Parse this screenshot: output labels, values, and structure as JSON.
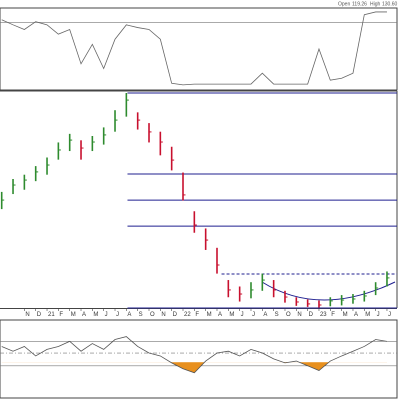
{
  "chart_data": [
    {
      "type": "line",
      "color": "#666666",
      "x": [
        -4,
        -3,
        -2,
        -1,
        0,
        1,
        2,
        3,
        4,
        5,
        6,
        7,
        8,
        9,
        10,
        11,
        12,
        13,
        14,
        15,
        16,
        17,
        18,
        19,
        20,
        21,
        22,
        23,
        24,
        25,
        26,
        27,
        28,
        29,
        30
      ],
      "values": [
        87.5,
        81,
        75,
        85,
        81,
        69,
        75,
        31,
        56,
        25,
        62.5,
        81,
        77.5,
        75,
        62.5,
        6,
        4,
        5,
        5,
        5,
        5,
        5,
        5,
        19,
        5,
        5,
        5,
        5,
        50,
        10,
        12.5,
        19,
        94,
        97.5,
        97.5
      ],
      "xlim": [
        -4.15,
        31.15
      ],
      "ylim": [
        0,
        100
      ],
      "levels": [
        84
      ]
    },
    {
      "type": "ohlc",
      "up_color": "#2e8b2e",
      "down_color": "#c8102e",
      "level_color": "#1f1f8f",
      "header": {
        "names": [
          "Open",
          "High"
        ],
        "values": [
          119.26,
          130.6
        ],
        "value_labels": [
          "119.26",
          "130.60"
        ]
      },
      "x": [
        -4,
        -3,
        -2,
        -1,
        0,
        1,
        2,
        3,
        4,
        5,
        6,
        7,
        8,
        9,
        10,
        11,
        12,
        13,
        14,
        15,
        16,
        17,
        18,
        19,
        20,
        21,
        22,
        23,
        24,
        25,
        26,
        27,
        28,
        29,
        30
      ],
      "high": [
        89,
        95,
        97,
        101,
        105,
        112,
        116,
        113,
        115,
        119,
        127,
        135,
        126,
        121,
        117,
        110,
        98,
        80,
        72,
        63,
        48,
        45,
        47,
        51,
        48,
        43,
        40,
        39,
        38.5,
        40,
        41,
        41.5,
        43,
        47,
        52
      ],
      "low": [
        81,
        88,
        90,
        94,
        97,
        104,
        108,
        104,
        108,
        111,
        117,
        124,
        118,
        112,
        106,
        99,
        85,
        70,
        62,
        51,
        40,
        38,
        39.5,
        43,
        40,
        37.5,
        36,
        35.5,
        35.2,
        35.8,
        36.2,
        37,
        38,
        41,
        45
      ],
      "close": [
        85.2,
        92.2,
        94.5,
        98.3,
        101.5,
        108.5,
        113.1,
        109.4,
        112.2,
        115.5,
        122.4,
        131.7,
        122.4,
        116.9,
        112.2,
        103.8,
        87.6,
        73.6,
        66.6,
        55,
        43.4,
        41.5,
        43.4,
        48,
        43.4,
        40.1,
        37.8,
        36.9,
        36.4,
        38.3,
        38.7,
        39.2,
        40.6,
        44.3,
        49
      ],
      "levels": [
        {
          "value": 135,
          "from": 7.1
        },
        {
          "value": 97.3,
          "from": 7.1
        },
        {
          "value": 85.2,
          "from": 7.1
        },
        {
          "value": 73.1,
          "from": 7.1
        },
        {
          "value": 50.8,
          "from": 15.4,
          "dashed": true
        },
        {
          "value": 35,
          "from": 7.1
        }
      ],
      "xlim": [
        -4.15,
        31.15
      ],
      "ylim": [
        35,
        135
      ],
      "xticks": [
        {
          "value": -2,
          "label": "N"
        },
        {
          "value": -1,
          "label": "D"
        },
        {
          "value": 0,
          "label": "21"
        },
        {
          "value": 1,
          "label": "F"
        },
        {
          "value": 2,
          "label": "M"
        },
        {
          "value": 3,
          "label": "A"
        },
        {
          "value": 4,
          "label": "M"
        },
        {
          "value": 5,
          "label": "J"
        },
        {
          "value": 6,
          "label": "J"
        },
        {
          "value": 7,
          "label": "A"
        },
        {
          "value": 8,
          "label": "S"
        },
        {
          "value": 9,
          "label": "O"
        },
        {
          "value": 10,
          "label": "N"
        },
        {
          "value": 11,
          "label": "D"
        },
        {
          "value": 12,
          "label": "22"
        },
        {
          "value": 13,
          "label": "F"
        },
        {
          "value": 14,
          "label": "M"
        },
        {
          "value": 15,
          "label": "A"
        },
        {
          "value": 16,
          "label": "M"
        },
        {
          "value": 17,
          "label": "J"
        },
        {
          "value": 18,
          "label": "J"
        },
        {
          "value": 19,
          "label": "A"
        },
        {
          "value": 20,
          "label": "S"
        },
        {
          "value": 21,
          "label": "O"
        },
        {
          "value": 22,
          "label": "N"
        },
        {
          "value": 23,
          "label": "D"
        },
        {
          "value": 24,
          "label": "23"
        },
        {
          "value": 25,
          "label": "F"
        },
        {
          "value": 26,
          "label": "M"
        },
        {
          "value": 27,
          "label": "A"
        },
        {
          "value": 28,
          "label": "M"
        },
        {
          "value": 29,
          "label": "J"
        },
        {
          "value": 30,
          "label": "J"
        }
      ]
    },
    {
      "type": "line",
      "color": "#555555",
      "fill_color": "#e8901e",
      "x": [
        -4,
        -3,
        -2,
        -1,
        0,
        1,
        2,
        3,
        4,
        5,
        6,
        7,
        8,
        9,
        10,
        11,
        12,
        13,
        14,
        15,
        16,
        17,
        18,
        19,
        20,
        21,
        22,
        23,
        24,
        25,
        26,
        27,
        28,
        29,
        30
      ],
      "values": [
        0.33,
        0.2,
        0.33,
        0.07,
        0.25,
        0.33,
        0.47,
        0.2,
        0.41,
        0.25,
        0.52,
        0.6,
        0.33,
        0.15,
        0.07,
        -0.12,
        -0.28,
        -0.39,
        -0.07,
        0.15,
        0.2,
        0.07,
        0.25,
        0.15,
        -0.01,
        -0.12,
        -0.07,
        -0.2,
        -0.33,
        -0.07,
        0.07,
        0.2,
        0.33,
        0.52,
        0.47
      ],
      "xlim": [
        -4.15,
        31.15
      ],
      "ylim": [
        -1,
        1
      ],
      "levels": [
        0.47,
        -0.2
      ],
      "midline": 0.15,
      "fill_below": -0.1
    }
  ]
}
